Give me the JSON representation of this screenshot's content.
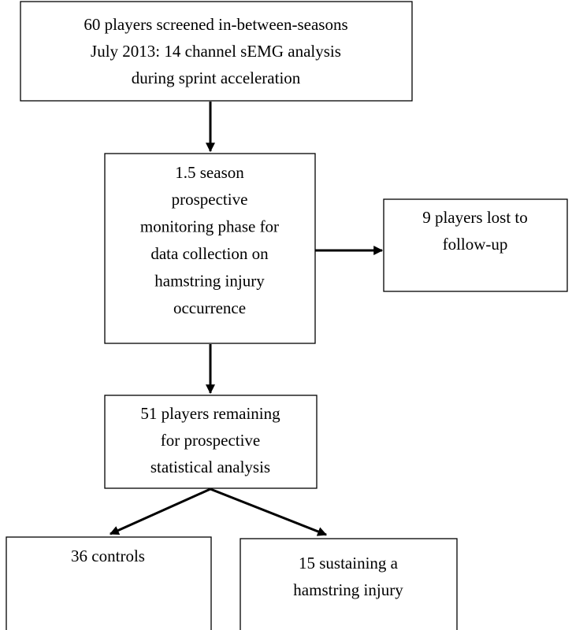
{
  "nodes": [
    {
      "lines": [
        "60 players screened in-between-seasons",
        "July 2013: 14 channel sEMG analysis",
        "during sprint acceleration"
      ]
    },
    {
      "lines": [
        "1.5 season",
        "prospective",
        "monitoring phase for",
        "data collection on",
        "hamstring injury",
        "occurrence"
      ]
    },
    {
      "lines": [
        "9 players lost to",
        "follow-up"
      ]
    },
    {
      "lines": [
        "51 players remaining",
        "for prospective",
        "statistical analysis"
      ]
    },
    {
      "lines": [
        "36 controls"
      ]
    },
    {
      "lines": [
        "15 sustaining a",
        "hamstring injury"
      ]
    }
  ]
}
